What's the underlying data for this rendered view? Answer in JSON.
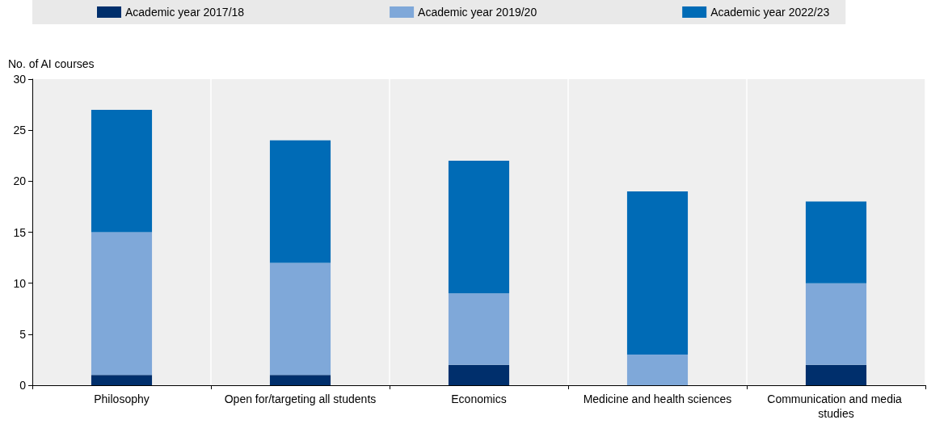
{
  "chart_data": {
    "type": "bar",
    "stacked": true,
    "ylabel": "No. of AI courses",
    "categories": [
      "Philosophy",
      "Open for/targeting all students",
      "Economics",
      "Medicine and health sciences",
      "Communication and media studies"
    ],
    "series": [
      {
        "name": "Academic year 2017/18",
        "color": "#002f6c",
        "values": [
          1,
          1,
          2,
          0,
          2
        ]
      },
      {
        "name": "Academic year 2019/20",
        "color": "#7fa8d9",
        "values": [
          14,
          11,
          7,
          3,
          8
        ]
      },
      {
        "name": "Academic year 2022/23",
        "color": "#006bb6",
        "values": [
          12,
          12,
          13,
          16,
          8
        ]
      }
    ],
    "ylim": [
      0,
      30
    ],
    "yticks": [
      0,
      5,
      10,
      15,
      20,
      25,
      30
    ],
    "grid": "x",
    "legend": "top"
  }
}
